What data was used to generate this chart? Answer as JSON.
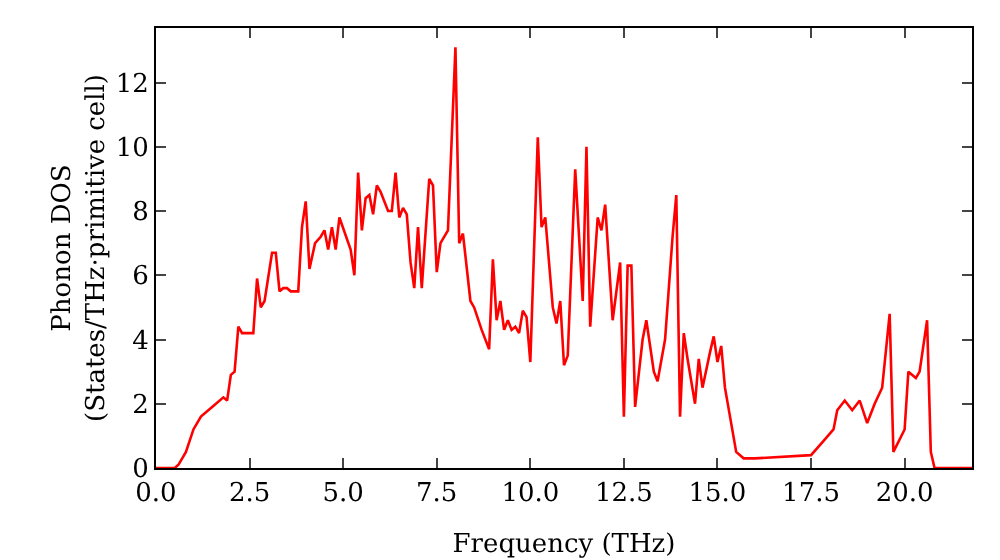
{
  "chart_data": {
    "type": "line",
    "xlabel": "Frequency (THz)",
    "ylabel": "Phonon DOS\n(States/THz·primitive cell)",
    "xlim": [
      0,
      21.8
    ],
    "ylim": [
      0,
      13.7
    ],
    "xticks": [
      {
        "value": 0,
        "label": "0.0"
      },
      {
        "value": 2.5,
        "label": "2.5"
      },
      {
        "value": 5,
        "label": "5.0"
      },
      {
        "value": 7.5,
        "label": "7.5"
      },
      {
        "value": 10,
        "label": "10.0"
      },
      {
        "value": 12.5,
        "label": "12.5"
      },
      {
        "value": 15,
        "label": "15.0"
      },
      {
        "value": 17.5,
        "label": "17.5"
      },
      {
        "value": 20,
        "label": "20.0"
      }
    ],
    "yticks": [
      0,
      2,
      4,
      6,
      8,
      10,
      12
    ],
    "grid": false,
    "marker": "none",
    "line_style": "solid",
    "series": [
      {
        "color": "#ff0000",
        "x": [
          0,
          0.5,
          0.6,
          0.8,
          1.0,
          1.2,
          1.5,
          1.8,
          1.9,
          2.0,
          2.1,
          2.2,
          2.3,
          2.6,
          2.7,
          2.8,
          2.9,
          3.1,
          3.2,
          3.3,
          3.4,
          3.5,
          3.6,
          3.8,
          3.9,
          4.0,
          4.1,
          4.25,
          4.4,
          4.5,
          4.6,
          4.7,
          4.8,
          4.9,
          5.2,
          5.3,
          5.4,
          5.5,
          5.6,
          5.7,
          5.8,
          5.9,
          6.0,
          6.2,
          6.3,
          6.4,
          6.5,
          6.6,
          6.7,
          6.8,
          6.9,
          7.0,
          7.1,
          7.3,
          7.4,
          7.5,
          7.6,
          7.8,
          8.0,
          8.1,
          8.2,
          8.4,
          8.5,
          8.7,
          8.9,
          9.0,
          9.1,
          9.2,
          9.3,
          9.4,
          9.5,
          9.6,
          9.7,
          9.8,
          9.9,
          10.0,
          10.2,
          10.3,
          10.4,
          10.6,
          10.7,
          10.8,
          10.9,
          11.0,
          11.2,
          11.4,
          11.5,
          11.6,
          11.8,
          11.9,
          12.0,
          12.2,
          12.4,
          12.5,
          12.6,
          12.7,
          12.8,
          13.0,
          13.1,
          13.3,
          13.4,
          13.6,
          13.8,
          13.9,
          14.0,
          14.1,
          14.2,
          14.4,
          14.5,
          14.6,
          14.8,
          14.9,
          15.0,
          15.1,
          15.2,
          15.5,
          15.7,
          16.0,
          17.5,
          17.8,
          18.1,
          18.2,
          18.4,
          18.6,
          18.8,
          19.0,
          19.2,
          19.4,
          19.6,
          19.7,
          20.0,
          20.1,
          20.3,
          20.4,
          20.6,
          20.7,
          20.8,
          21.8
        ],
        "values": [
          0,
          0,
          0.1,
          0.5,
          1.2,
          1.6,
          1.9,
          2.2,
          2.1,
          2.9,
          3.0,
          4.4,
          4.2,
          4.2,
          5.9,
          5.0,
          5.2,
          6.7,
          6.7,
          5.5,
          5.6,
          5.6,
          5.5,
          5.5,
          7.5,
          8.3,
          6.2,
          7.0,
          7.2,
          7.4,
          6.8,
          7.5,
          6.8,
          7.8,
          6.8,
          6.0,
          9.2,
          7.4,
          8.4,
          8.5,
          7.9,
          8.8,
          8.6,
          8.0,
          8.0,
          9.2,
          7.8,
          8.1,
          7.9,
          6.4,
          5.6,
          7.5,
          5.6,
          9.0,
          8.8,
          6.1,
          7.0,
          7.4,
          13.1,
          7.0,
          7.3,
          5.2,
          5.0,
          4.3,
          3.7,
          6.5,
          4.6,
          5.2,
          4.3,
          4.6,
          4.3,
          4.4,
          4.2,
          4.9,
          4.7,
          3.3,
          10.3,
          7.5,
          7.8,
          5.0,
          4.5,
          5.2,
          3.2,
          3.5,
          9.3,
          5.2,
          10.0,
          4.4,
          7.8,
          7.4,
          8.2,
          4.6,
          6.4,
          1.6,
          6.3,
          6.3,
          1.9,
          4.0,
          4.6,
          3.0,
          2.7,
          4.0,
          7.2,
          8.5,
          1.6,
          4.2,
          3.4,
          2.0,
          3.4,
          2.5,
          3.6,
          4.1,
          3.3,
          3.8,
          2.5,
          0.5,
          0.3,
          0.3,
          0.4,
          0.8,
          1.2,
          1.8,
          2.1,
          1.8,
          2.1,
          1.4,
          2.0,
          2.5,
          4.8,
          0.5,
          1.2,
          3.0,
          2.8,
          3.0,
          4.6,
          0.5,
          0,
          0
        ]
      }
    ]
  }
}
